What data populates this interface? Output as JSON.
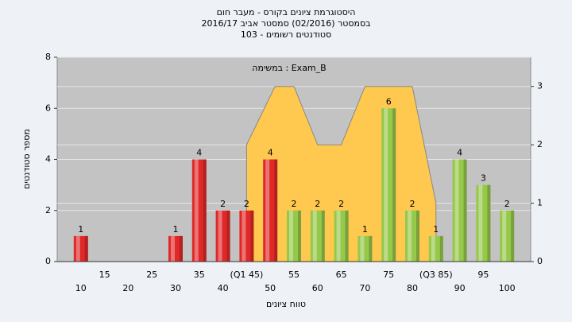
{
  "chart_data": {
    "type": "bar",
    "title": "היסטוגרמת ציונים בקורס - מעבר חום",
    "subtitles": [
      "בסמסטר  (02/2016)  סמסטר אביב 2016/17",
      "סטודנטים רשומים - 103"
    ],
    "annotation": "במשימה : Exam_B",
    "y_label": "מספר סטודנטים",
    "x_label": "טווח ציונים",
    "categories": [
      "10",
      "15",
      "20",
      "25",
      "30",
      "35",
      "40",
      "(Q1 45)",
      "50",
      "55",
      "60",
      "65",
      "70",
      "75",
      "80",
      "(Q3 85)",
      "90",
      "95",
      "100"
    ],
    "values": [
      1,
      0,
      0,
      0,
      1,
      4,
      2,
      2,
      4,
      2,
      2,
      2,
      1,
      6,
      2,
      1,
      4,
      3,
      2
    ],
    "colors": [
      "#e02828",
      "#e02828",
      "#e02828",
      "#e02828",
      "#e02828",
      "#e02828",
      "#e02828",
      "#e02828",
      "#e02828",
      "#96c84a",
      "#96c84a",
      "#96c84a",
      "#96c84a",
      "#96c84a",
      "#96c84a",
      "#96c84a",
      "#96c84a",
      "#96c84a",
      "#96c84a"
    ],
    "ylim": [
      0,
      8
    ],
    "yticks": [
      0,
      2,
      4,
      6,
      8
    ],
    "y2lim": [
      0,
      3.5
    ],
    "y2ticks": [
      0,
      1,
      2,
      3
    ],
    "xlim": [
      5,
      105
    ],
    "overlay": {
      "type": "area",
      "axis": "y2",
      "color": "#ffc84e",
      "x": [
        45,
        51,
        55,
        60,
        65,
        70,
        80,
        85
      ],
      "values": [
        2,
        3,
        3,
        2,
        2,
        3,
        3,
        1
      ]
    },
    "grid": true
  }
}
